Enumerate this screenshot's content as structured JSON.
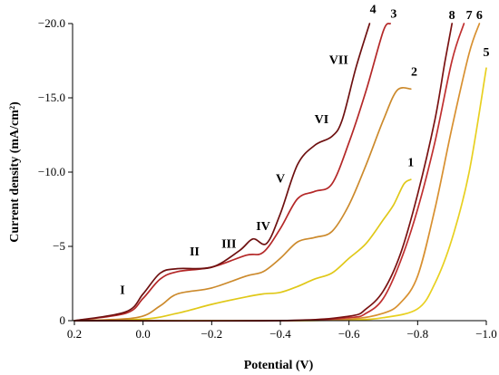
{
  "chart_data": {
    "type": "line",
    "xlabel": "Potential (V)",
    "ylabel": "Current density (mA/cm²)",
    "xlim": [
      0.2,
      -1.0
    ],
    "ylim": [
      0,
      20
    ],
    "x_reversed": true,
    "y_reversed": true,
    "grid": false,
    "x_ticks": [
      0.2,
      0.0,
      -0.2,
      -0.4,
      -0.6,
      -0.8,
      -1.0
    ],
    "x_tick_labels": [
      "0.2",
      "0.0",
      "−0.2",
      "−0.4",
      "−0.6",
      "−0.8",
      "−1.0"
    ],
    "y_ticks": [
      0,
      5,
      10,
      15,
      20
    ],
    "y_tick_labels": [
      "0",
      "−5",
      "−10.0",
      "−15.0",
      "−20.0"
    ],
    "series": [
      {
        "label": "1",
        "color": "#e0c818",
        "x": [
          0.2,
          0.0,
          -0.1,
          -0.2,
          -0.3,
          -0.35,
          -0.4,
          -0.45,
          -0.5,
          -0.55,
          -0.6,
          -0.65,
          -0.7,
          -0.73,
          -0.76,
          -0.78
        ],
        "y": [
          0,
          0.1,
          0.5,
          1.1,
          1.6,
          1.8,
          1.9,
          2.3,
          2.8,
          3.2,
          4.2,
          5.2,
          6.8,
          7.8,
          9.2,
          9.5
        ]
      },
      {
        "label": "2",
        "color": "#cc8a2c",
        "x": [
          0.2,
          0.02,
          -0.05,
          -0.1,
          -0.2,
          -0.3,
          -0.35,
          -0.4,
          -0.45,
          -0.5,
          -0.55,
          -0.6,
          -0.65,
          -0.7,
          -0.74,
          -0.78
        ],
        "y": [
          0,
          0.2,
          1.0,
          1.8,
          2.2,
          3.0,
          3.3,
          4.2,
          5.3,
          5.6,
          6.0,
          7.8,
          10.5,
          13.5,
          15.5,
          15.6
        ]
      },
      {
        "label": "3",
        "color": "#b42828",
        "x": [
          0.2,
          0.05,
          0.0,
          -0.05,
          -0.1,
          -0.2,
          -0.3,
          -0.35,
          -0.4,
          -0.45,
          -0.5,
          -0.55,
          -0.6,
          -0.65,
          -0.7,
          -0.72
        ],
        "y": [
          0,
          0.5,
          1.5,
          2.8,
          3.3,
          3.6,
          4.4,
          4.6,
          6.2,
          8.2,
          8.7,
          9.2,
          12.0,
          15.5,
          19.5,
          20
        ]
      },
      {
        "label": "4",
        "color": "#6e1010",
        "x": [
          0.2,
          0.05,
          0.0,
          -0.05,
          -0.1,
          -0.2,
          -0.28,
          -0.32,
          -0.36,
          -0.4,
          -0.45,
          -0.5,
          -0.55,
          -0.58,
          -0.62,
          -0.66
        ],
        "y": [
          0,
          0.6,
          1.8,
          3.2,
          3.5,
          3.6,
          4.7,
          5.5,
          5.2,
          7.2,
          10.5,
          11.8,
          12.4,
          13.5,
          17.0,
          20
        ]
      },
      {
        "label": "5",
        "color": "#e8d020",
        "x": [
          0.2,
          -0.4,
          -0.6,
          -0.7,
          -0.8,
          -0.85,
          -0.9,
          -0.95,
          -1.0
        ],
        "y": [
          0,
          0,
          0.05,
          0.2,
          0.8,
          2.5,
          5.5,
          10.0,
          17.0
        ]
      },
      {
        "label": "6",
        "color": "#d89030",
        "x": [
          0.2,
          -0.4,
          -0.6,
          -0.7,
          -0.75,
          -0.8,
          -0.85,
          -0.9,
          -0.95,
          -0.98
        ],
        "y": [
          0,
          0,
          0.1,
          0.5,
          1.2,
          3.0,
          7.5,
          13.0,
          18.0,
          20
        ]
      },
      {
        "label": "7",
        "color": "#c03030",
        "x": [
          0.2,
          -0.4,
          -0.6,
          -0.65,
          -0.7,
          -0.75,
          -0.8,
          -0.85,
          -0.9,
          -0.935
        ],
        "y": [
          0,
          0,
          0.2,
          0.5,
          1.5,
          4.0,
          7.5,
          12.0,
          17.5,
          20
        ]
      },
      {
        "label": "8",
        "color": "#7a1212",
        "x": [
          0.2,
          -0.4,
          -0.6,
          -0.65,
          -0.7,
          -0.75,
          -0.8,
          -0.85,
          -0.88,
          -0.9
        ],
        "y": [
          0,
          0,
          0.3,
          0.8,
          2.0,
          4.5,
          8.5,
          13.5,
          17.5,
          20
        ]
      }
    ],
    "annotations": [
      {
        "text": "I",
        "x": 0.06,
        "y": 1.8
      },
      {
        "text": "II",
        "x": -0.15,
        "y": 4.4
      },
      {
        "text": "III",
        "x": -0.25,
        "y": 4.9
      },
      {
        "text": "IV",
        "x": -0.35,
        "y": 6.1
      },
      {
        "text": "V",
        "x": -0.4,
        "y": 9.3
      },
      {
        "text": "VI",
        "x": -0.52,
        "y": 13.3
      },
      {
        "text": "VII",
        "x": -0.57,
        "y": 17.3
      },
      {
        "text": "1",
        "x": -0.78,
        "y": 10.4
      },
      {
        "text": "2",
        "x": -0.79,
        "y": 16.5
      },
      {
        "text": "3",
        "x": -0.73,
        "y": 20.4
      },
      {
        "text": "4",
        "x": -0.67,
        "y": 20.7
      },
      {
        "text": "5",
        "x": -1.0,
        "y": 17.8
      },
      {
        "text": "6",
        "x": -0.98,
        "y": 20.3
      },
      {
        "text": "7",
        "x": -0.95,
        "y": 20.3
      },
      {
        "text": "8",
        "x": -0.9,
        "y": 20.3
      }
    ]
  }
}
